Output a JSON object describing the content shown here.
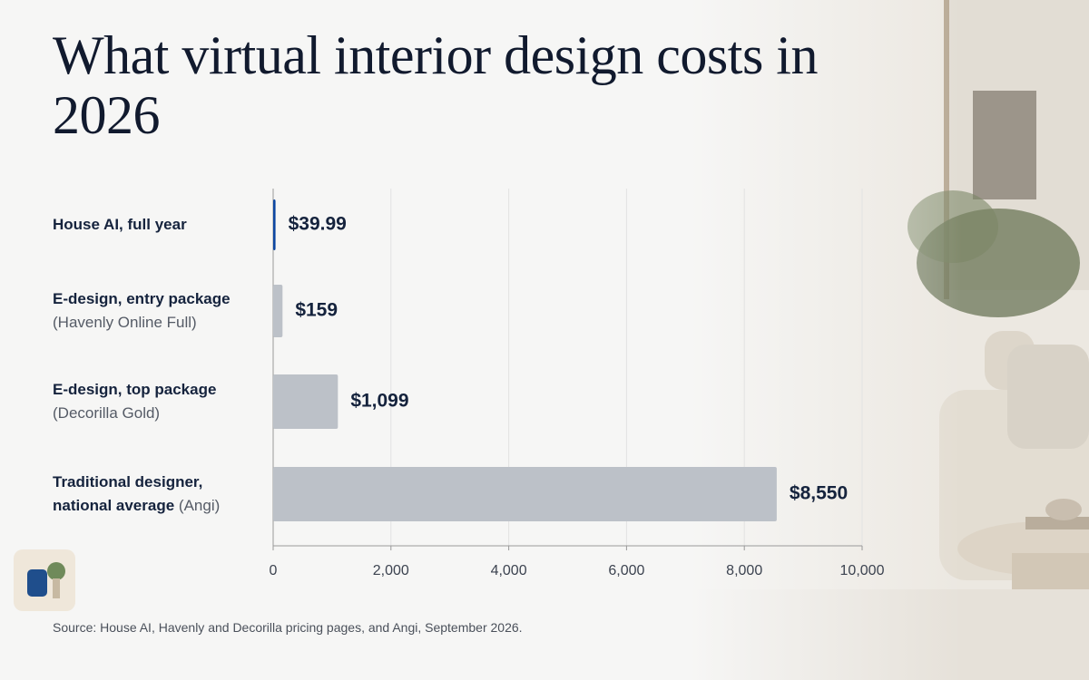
{
  "chart_data": {
    "type": "hbar",
    "title": "What virtual interior design costs in 2026",
    "categories": [
      "House AI, full year",
      "E-design, entry package",
      "E-design, top package",
      "Traditional designer, national average"
    ],
    "category_notes": [
      null,
      "(Havenly Online Full)",
      "(Decorilla Gold)",
      "(Angi)"
    ],
    "values": [
      39.99,
      159,
      1099,
      8550
    ],
    "value_labels": [
      "$39.99",
      "$159",
      "$1,099",
      "$8,550"
    ],
    "colors": [
      "#0d47a1",
      "#bcc1c8",
      "#bcc1c8",
      "#bcc1c8"
    ],
    "xlim": [
      0,
      10000
    ],
    "xticks": [
      0,
      {
        "value": 2000,
        "label": "2,000"
      },
      {
        "value": 4000,
        "label": "4,000"
      },
      {
        "value": 6000,
        "label": "6,000"
      },
      {
        "value": 8000,
        "label": "8,000"
      },
      {
        "value": 10000,
        "label": "10,000"
      }
    ],
    "grid": true,
    "source": "Source: House AI, Havenly and Decorilla pricing pages, and Angi, September 2026."
  }
}
